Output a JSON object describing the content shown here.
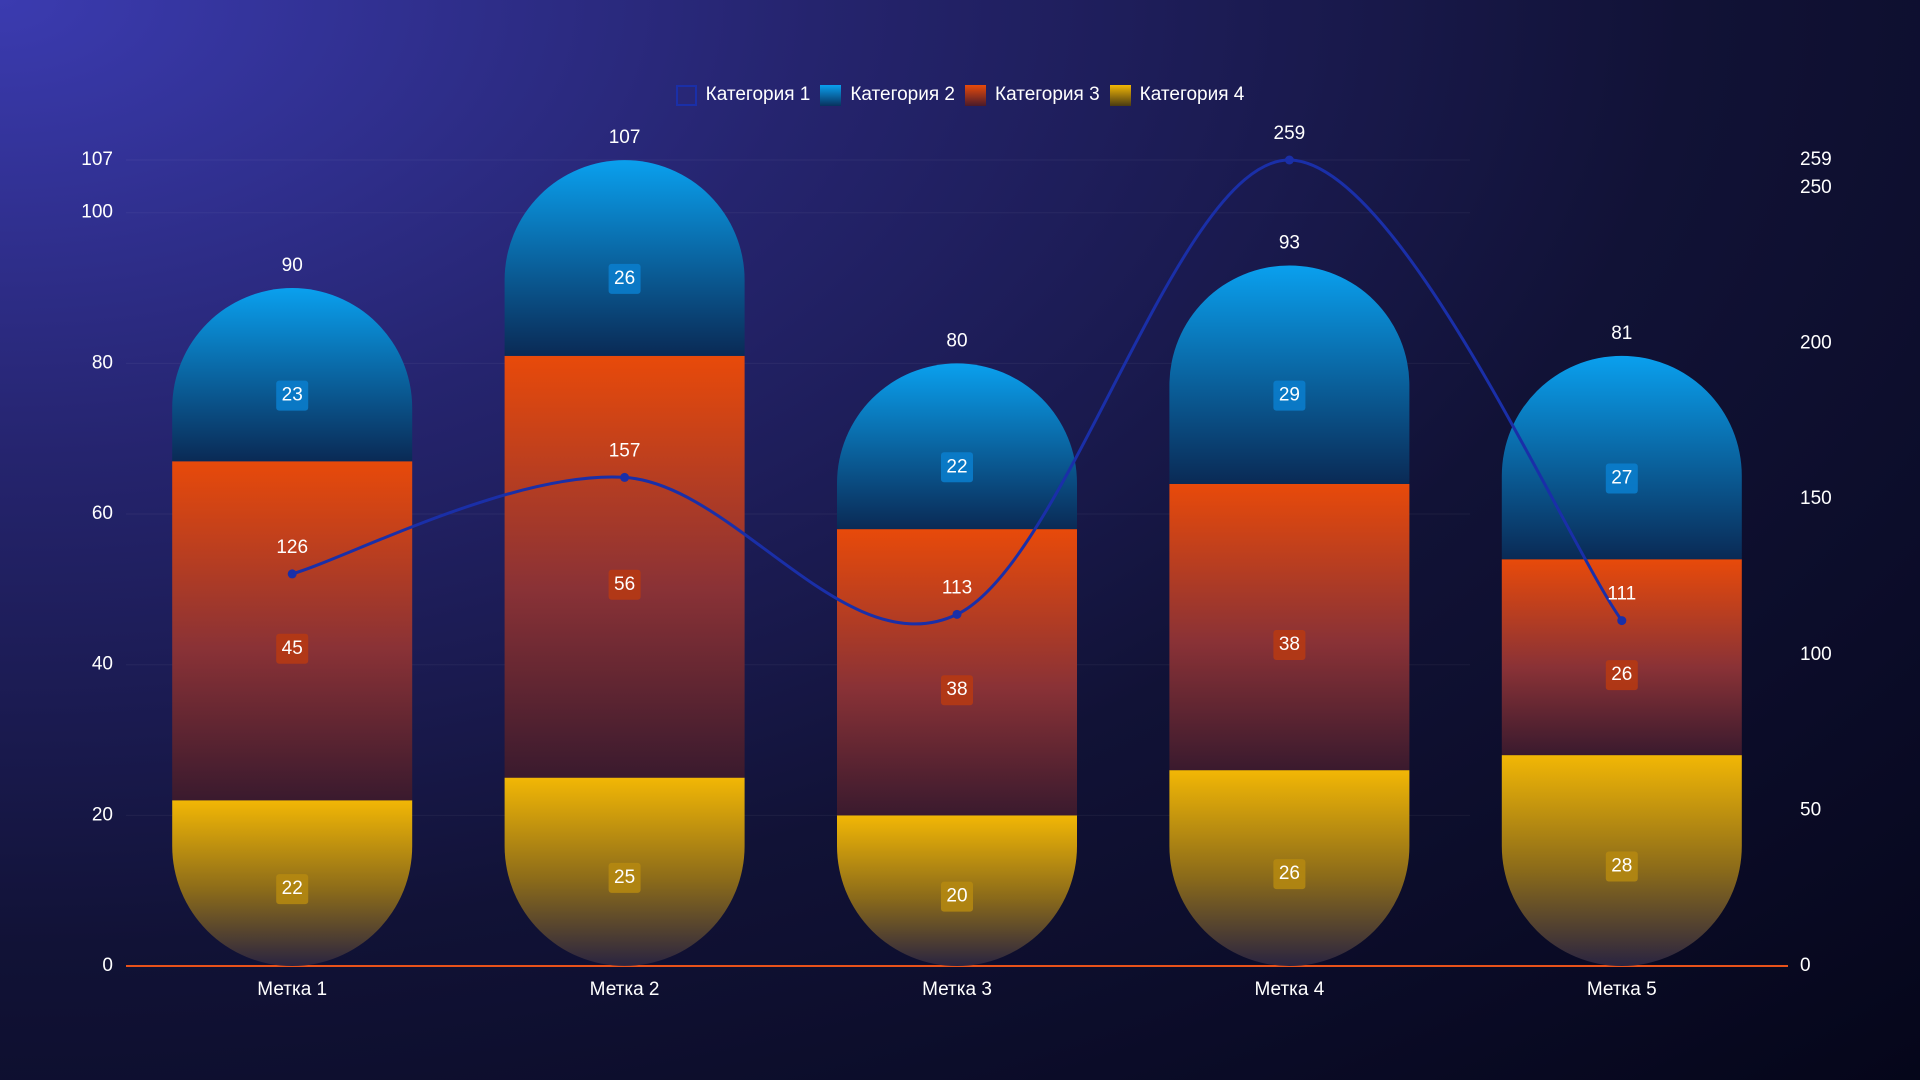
{
  "chart_data": {
    "type": "bar",
    "title": "",
    "xlabel": "",
    "ylabel": "",
    "categories": [
      "Метка 1",
      "Метка 2",
      "Метка 3",
      "Метка 4",
      "Метка 5"
    ],
    "series": [
      {
        "name": "Категория 1",
        "kind": "line",
        "axis": "right",
        "values": [
          126,
          157,
          113,
          259,
          111
        ]
      },
      {
        "name": "Категория 2",
        "kind": "bar",
        "axis": "left",
        "values": [
          23,
          26,
          22,
          29,
          27
        ]
      },
      {
        "name": "Категория 3",
        "kind": "bar",
        "axis": "left",
        "values": [
          45,
          56,
          38,
          38,
          26
        ]
      },
      {
        "name": "Категория 4",
        "kind": "bar",
        "axis": "left",
        "values": [
          22,
          25,
          20,
          26,
          28
        ]
      }
    ],
    "totals": [
      90,
      107,
      80,
      93,
      81
    ],
    "ylim_left": [
      0,
      107
    ],
    "yticks_left": [
      0,
      20,
      40,
      60,
      80,
      100,
      107
    ],
    "ylim_right": [
      0,
      259
    ],
    "yticks_right": [
      0,
      50,
      100,
      150,
      200,
      250,
      259
    ],
    "legend_position": "top",
    "colors": {
      "line": "#1a2fa8",
      "cat2": "#0aa0ee",
      "cat3": "#e84a0a",
      "cat4": "#f2b705",
      "baseline": "#e8521a"
    }
  }
}
